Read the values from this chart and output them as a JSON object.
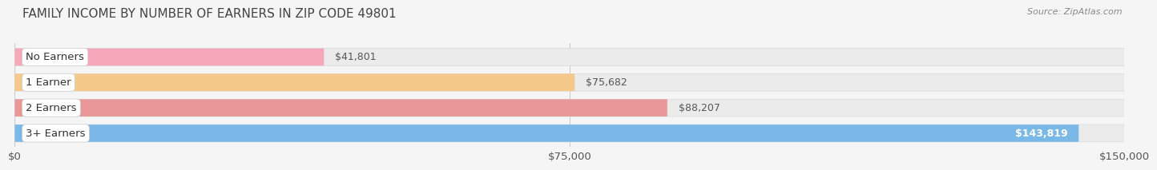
{
  "title": "FAMILY INCOME BY NUMBER OF EARNERS IN ZIP CODE 49801",
  "source": "Source: ZipAtlas.com",
  "categories": [
    "No Earners",
    "1 Earner",
    "2 Earners",
    "3+ Earners"
  ],
  "values": [
    41801,
    75682,
    88207,
    143819
  ],
  "bar_colors": [
    "#f5a8b8",
    "#f5c98a",
    "#e89898",
    "#7ab8e8"
  ],
  "label_dot_colors": [
    "#e87090",
    "#e0a040",
    "#d06868",
    "#5090d0"
  ],
  "value_labels": [
    "$41,801",
    "$75,682",
    "$88,207",
    "$143,819"
  ],
  "xlim": [
    0,
    150000
  ],
  "xtick_values": [
    0,
    75000,
    150000
  ],
  "xtick_labels": [
    "$0",
    "$75,000",
    "$150,000"
  ],
  "background_color": "#f5f5f5",
  "bar_bg_color": "#ebebeb",
  "title_fontsize": 11,
  "label_fontsize": 9.5,
  "value_fontsize": 9,
  "source_fontsize": 8,
  "source_color": "#888888"
}
